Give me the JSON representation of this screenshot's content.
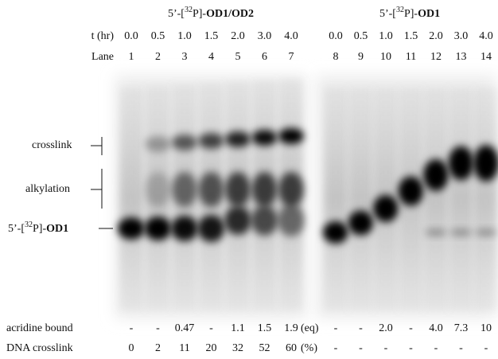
{
  "panels": [
    {
      "title": {
        "prefix": "5’-[",
        "superscript": "32",
        "middle": "P]-",
        "bold": "OD1/OD2"
      },
      "times": [
        "0.0",
        "0.5",
        "1.0",
        "1.5",
        "2.0",
        "3.0",
        "4.0"
      ],
      "lanes": [
        "1",
        "2",
        "3",
        "4",
        "5",
        "6",
        "7"
      ],
      "acridine_bound": [
        "-",
        "-",
        "0.47",
        "-",
        "1.1",
        "1.5",
        "1.9"
      ],
      "acridine_unit": "(eq)",
      "dna_crosslink": [
        "0",
        "2",
        "11",
        "20",
        "32",
        "52",
        "60"
      ],
      "crosslink_unit": "(%)"
    },
    {
      "title": {
        "prefix": "5’-[",
        "superscript": "32",
        "middle": "P]-",
        "bold": "OD1"
      },
      "times": [
        "0.0",
        "0.5",
        "1.0",
        "1.5",
        "2.0",
        "3.0",
        "4.0"
      ],
      "lanes": [
        "8",
        "9",
        "10",
        "11",
        "12",
        "13",
        "14"
      ],
      "acridine_bound": [
        "-",
        "-",
        "2.0",
        "-",
        "4.0",
        "7.3",
        "10"
      ],
      "dna_crosslink": [
        "-",
        "-",
        "-",
        "-",
        "-",
        "-",
        "-"
      ]
    }
  ],
  "row_labels": {
    "time": "t (hr)",
    "lane": "Lane",
    "acridine_bound": "acridine bound",
    "dna_crosslink": "DNA crosslink"
  },
  "band_labels": {
    "crosslink": "crosslink",
    "alkylation": "alkylation",
    "substrate": {
      "prefix": "5’-[",
      "superscript": "32",
      "middle": "P]-",
      "bold": "OD1"
    }
  }
}
